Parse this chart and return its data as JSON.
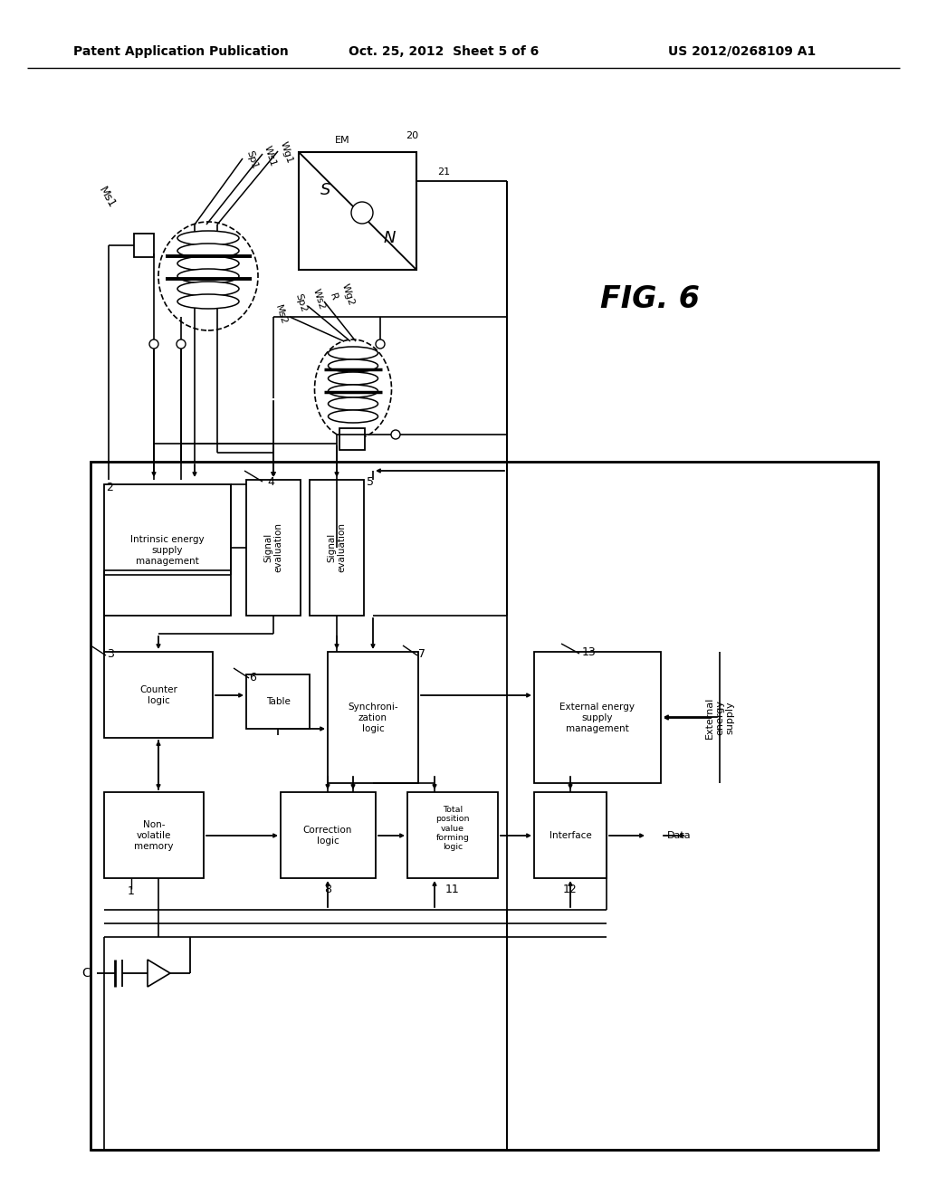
{
  "header_left": "Patent Application Publication",
  "header_center": "Oct. 25, 2012  Sheet 5 of 6",
  "header_right": "US 2012/0268109 A1",
  "fig_label": "FIG. 6",
  "bg": "#ffffff",
  "lc": "#000000"
}
